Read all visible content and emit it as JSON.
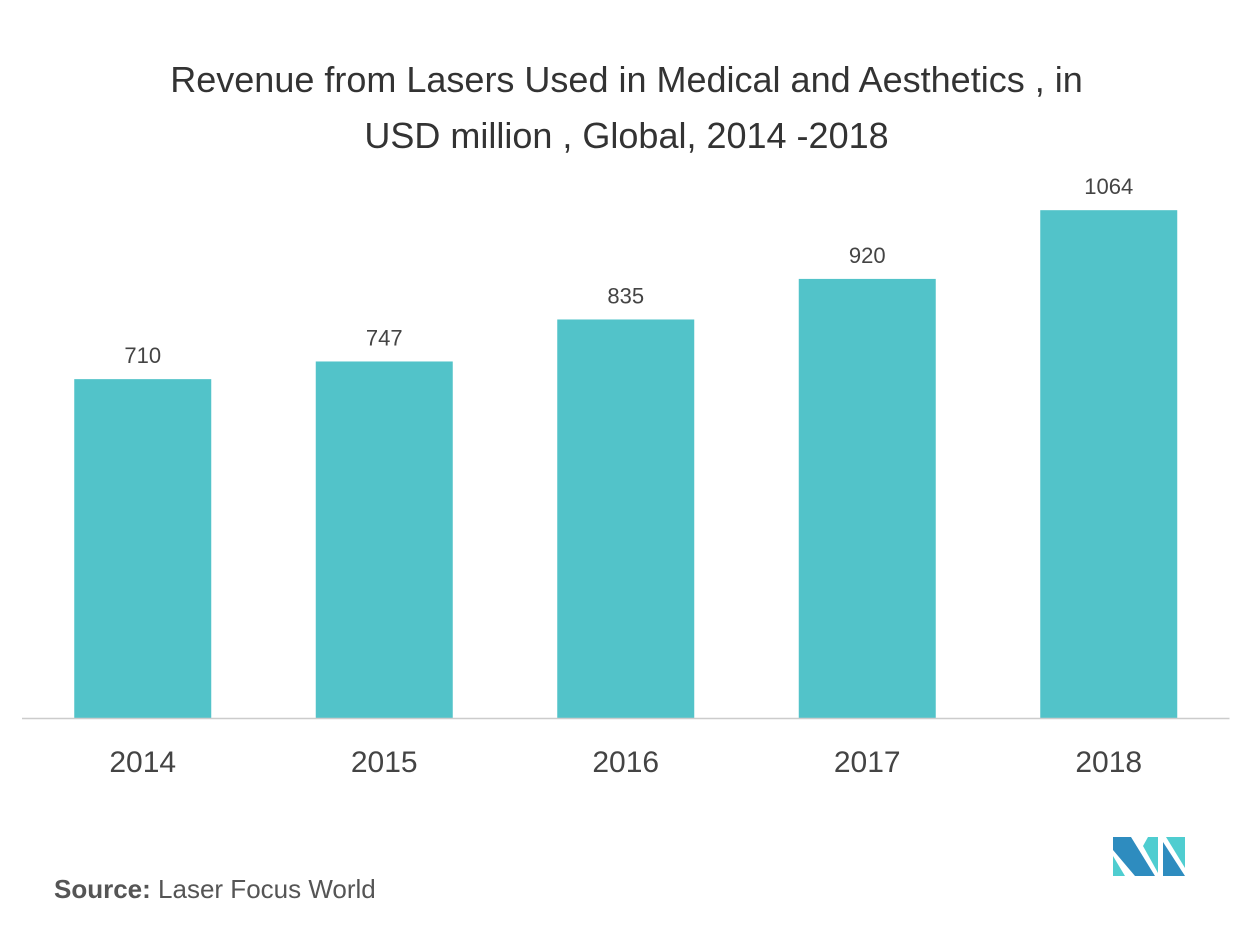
{
  "chart_data": {
    "type": "bar",
    "title": "Revenue from Lasers Used in Medical and Aesthetics , in USD million , Global, 2014 -2018",
    "title_lines": [
      "Revenue from Lasers Used in Medical and Aesthetics , in",
      "USD million , Global, 2014 -2018"
    ],
    "categories": [
      "2014",
      "2015",
      "2016",
      "2017",
      "2018"
    ],
    "values": [
      710,
      747,
      835,
      920,
      1064
    ],
    "data_labels": [
      "710",
      "747",
      "835",
      "920",
      "1064"
    ],
    "xlabel": "",
    "ylabel": "",
    "ylim": [
      0,
      1100
    ],
    "grid": false,
    "bar_color": "#52c3c9"
  },
  "source": {
    "label": "Source:",
    "text": "Laser Focus World"
  },
  "logo": {
    "colors": [
      "#2e8cbf",
      "#4fcdd0"
    ]
  }
}
